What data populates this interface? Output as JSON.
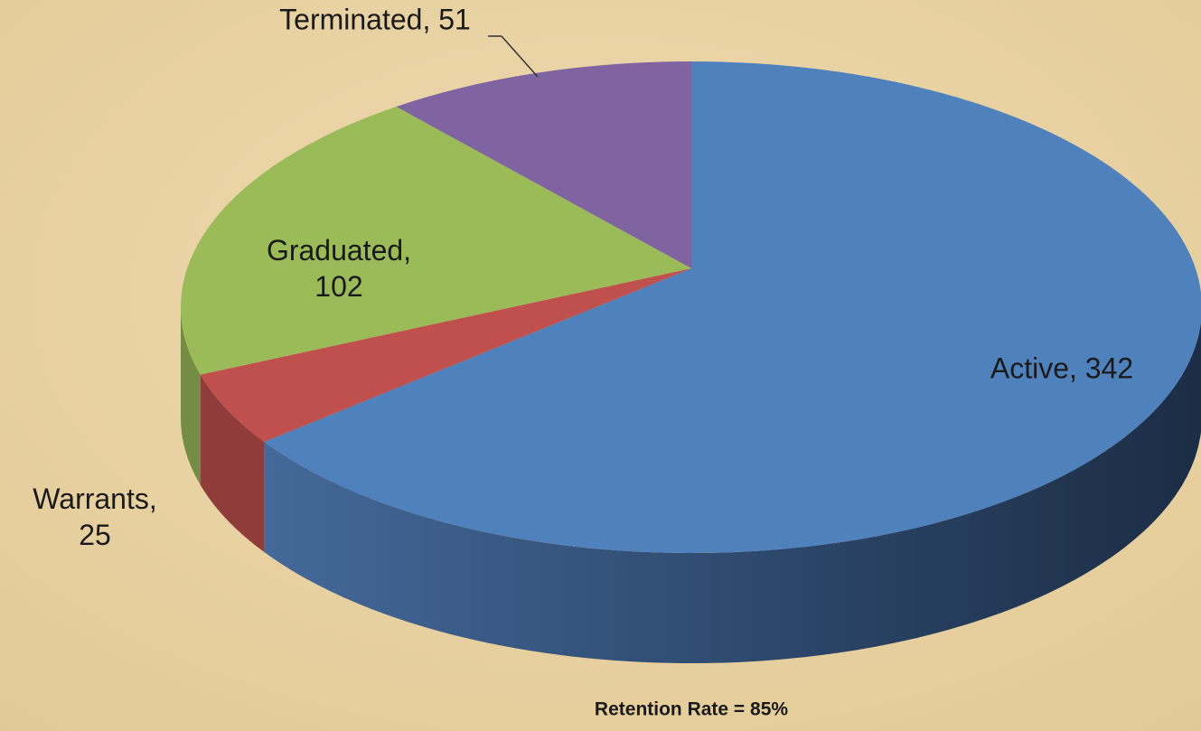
{
  "chart_data": {
    "type": "pie3d",
    "categories": [
      "Active",
      "Warrants",
      "Graduated",
      "Terminated"
    ],
    "values": [
      342,
      25,
      102,
      51
    ],
    "value_labels": [
      "Active, 342",
      "Warrants, 25",
      "Graduated, 102",
      "Terminated, 51"
    ],
    "colors": [
      "#4f81bd",
      "#c0504d",
      "#9bbb59",
      "#8064a2"
    ],
    "annotation": "Retention Rate = 85%"
  }
}
